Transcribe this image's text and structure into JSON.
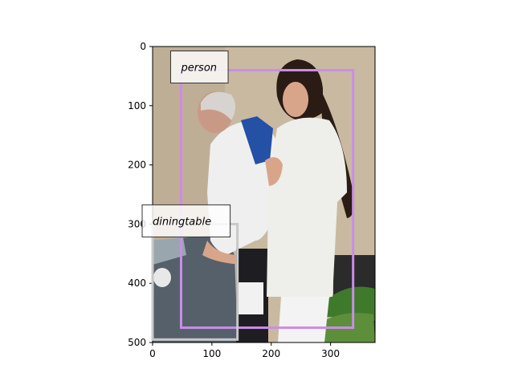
{
  "image": {
    "width": 375,
    "height": 500,
    "scene": {
      "wall_color": "#c9b9a0",
      "table_color": "#55606a",
      "person_white": "#eeeeea",
      "hair_dark": "#2a1c14",
      "skin": "#d9a58a"
    }
  },
  "axes": {
    "xlim": [
      0,
      375
    ],
    "ylim": [
      500,
      0
    ],
    "x_ticks": [
      "0",
      "100",
      "200",
      "300"
    ],
    "x_tick_values": [
      0,
      100,
      200,
      300
    ],
    "y_ticks": [
      "0",
      "100",
      "200",
      "300",
      "400",
      "500"
    ],
    "y_tick_values": [
      0,
      100,
      200,
      300,
      400,
      500
    ]
  },
  "detections": [
    {
      "label": "person",
      "color": "#c98de8",
      "x_min": 48,
      "y_min": 40,
      "x_max": 338,
      "y_max": 475
    },
    {
      "label": "diningtable",
      "color": "#c8c8c8",
      "x_min": 0,
      "y_min": 300,
      "x_max": 143,
      "y_max": 495
    }
  ]
}
